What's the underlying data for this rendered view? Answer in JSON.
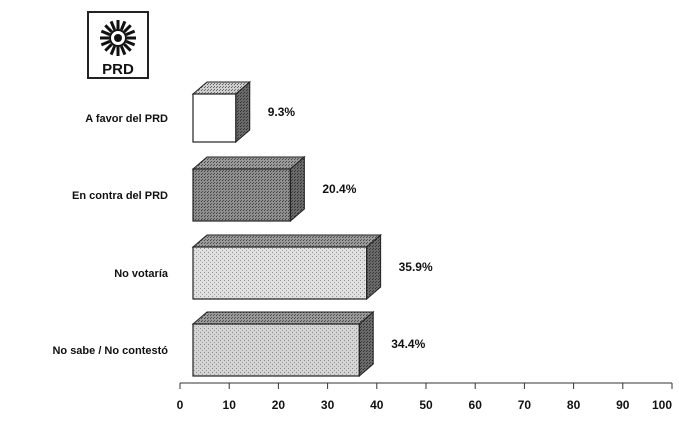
{
  "logo": {
    "text": "PRD",
    "icon": "prd-sun-logo"
  },
  "chart_data": {
    "type": "bar",
    "orientation": "horizontal",
    "style": "3d-stippled",
    "categories": [
      "A favor del PRD",
      "En contra del PRD",
      "No votaría",
      "No sabe / No contestó"
    ],
    "values": [
      9.3,
      20.4,
      35.9,
      34.4
    ],
    "value_labels": [
      "9.3%",
      "20.4%",
      "35.9%",
      "34.4%"
    ],
    "xlim": [
      0,
      100
    ],
    "x_ticks": [
      0,
      10,
      20,
      30,
      40,
      50,
      60,
      70,
      80,
      90,
      100
    ],
    "colors": {
      "A favor del PRD": "#ffffff",
      "En contra del PRD": "#8f8f8f",
      "No votaría": "#e0e0e0",
      "No sabe / No contestó": "#d4d4d4"
    },
    "grid": false,
    "legend": "none"
  }
}
